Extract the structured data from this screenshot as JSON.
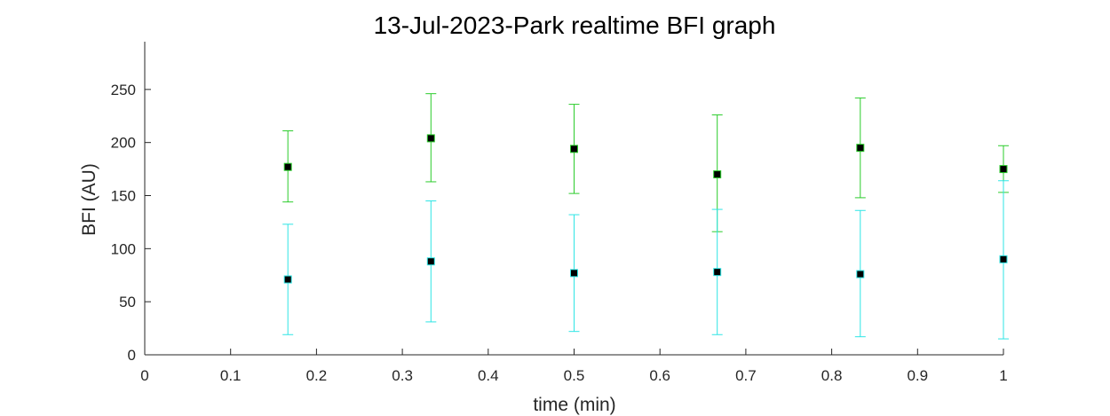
{
  "chart_data": {
    "type": "scatter",
    "title": "13-Jul-2023-Park realtime BFI graph",
    "xlabel": "time (min)",
    "ylabel": "BFI (AU)",
    "xlim": [
      0,
      1
    ],
    "ylim": [
      0,
      295
    ],
    "xticks": [
      "0",
      "0.1",
      "0.2",
      "0.3",
      "0.4",
      "0.5",
      "0.6",
      "0.7",
      "0.8",
      "0.9",
      "1"
    ],
    "yticks": [
      "0",
      "50",
      "100",
      "150",
      "200",
      "250"
    ],
    "grid": false,
    "series": [
      {
        "color": "#2bcc2b",
        "x": [
          0.1667,
          0.3333,
          0.5,
          0.6667,
          0.8333,
          1.0
        ],
        "y": [
          177,
          204,
          194,
          170,
          195,
          175
        ],
        "err_low": [
          144,
          163,
          152,
          116,
          148,
          153
        ],
        "err_high": [
          211,
          246,
          236,
          226,
          242,
          197
        ]
      },
      {
        "color": "#2ee5e5",
        "x": [
          0.1667,
          0.3333,
          0.5,
          0.6667,
          0.8333,
          1.0
        ],
        "y": [
          71,
          88,
          77,
          78,
          76,
          90
        ],
        "err_low": [
          19,
          31,
          22,
          19,
          17,
          15
        ],
        "err_high": [
          123,
          145,
          132,
          137,
          136,
          164
        ]
      }
    ]
  }
}
